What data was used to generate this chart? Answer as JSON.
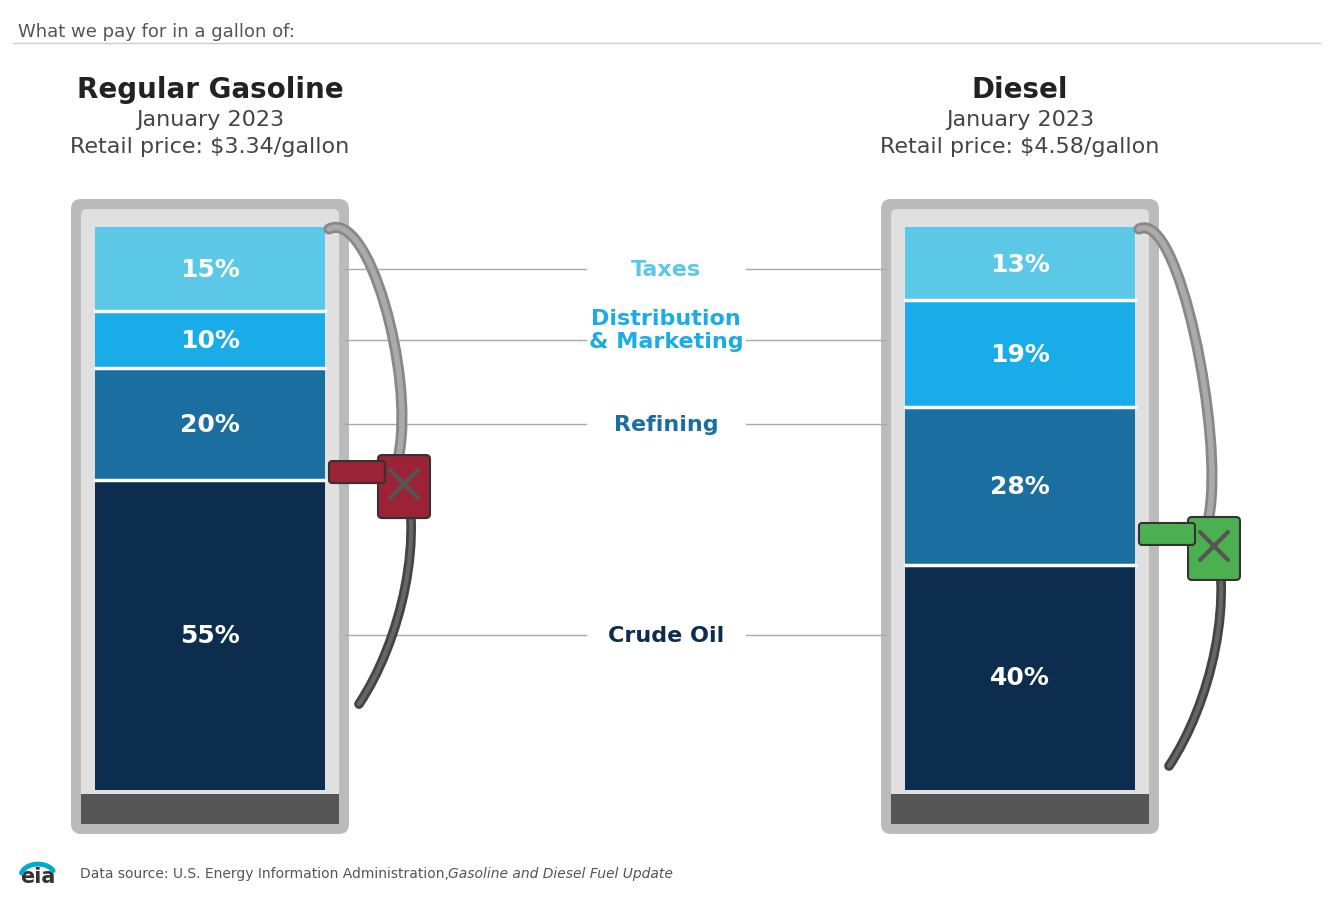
{
  "title_main": "What we pay for in a gallon of:",
  "gasoline": {
    "title": "Regular Gasoline",
    "subtitle": "January 2023",
    "price": "Retail price: $3.34/gallon",
    "segments": [
      {
        "label": "15%",
        "value": 15,
        "color": "#5BC8E8"
      },
      {
        "label": "10%",
        "value": 10,
        "color": "#1AACE8"
      },
      {
        "label": "20%",
        "value": 20,
        "color": "#1A6FA0"
      },
      {
        "label": "55%",
        "value": 55,
        "color": "#0D2D4E"
      }
    ],
    "nozzle_color": "#9B2335",
    "hose_color": "#555555"
  },
  "diesel": {
    "title": "Diesel",
    "subtitle": "January 2023",
    "price": "Retail price: $4.58/gallon",
    "segments": [
      {
        "label": "13%",
        "value": 13,
        "color": "#5BC8E8"
      },
      {
        "label": "19%",
        "value": 19,
        "color": "#1AACE8"
      },
      {
        "label": "28%",
        "value": 28,
        "color": "#1A6FA0"
      },
      {
        "label": "40%",
        "value": 40,
        "color": "#0D2D4E"
      }
    ],
    "nozzle_color": "#4CAF50",
    "hose_color": "#555555"
  },
  "center_labels": [
    {
      "text": "Taxes",
      "color": "#5BC8E8"
    },
    {
      "text": "Distribution\n& Marketing",
      "color": "#1AACE8"
    },
    {
      "text": "Refining",
      "color": "#1A6FA0"
    },
    {
      "text": "Crude Oil",
      "color": "#0D2D4E"
    }
  ],
  "bg_color": "#FFFFFF",
  "pump_outer_color": "#C8C8C8",
  "pump_inner_bg": "#E8E8E8",
  "pump_base_color": "#555555",
  "hose_gray": "#888888",
  "line_color": "#AAAAAA",
  "title_color": "#222222",
  "subtitle_color": "#444444",
  "source_text": "Data source: U.S. Energy Information Administration, ",
  "source_italic": "Gasoline and Diesel Fuel Update"
}
